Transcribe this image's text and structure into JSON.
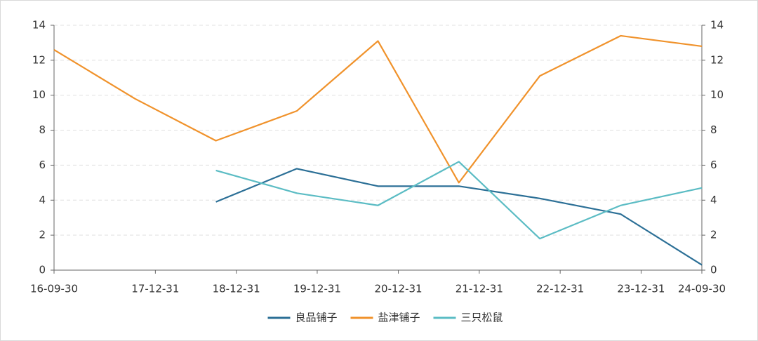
{
  "chart_data": {
    "type": "line",
    "x": [
      "16-09-30",
      "17-09-30",
      "18-09-30",
      "19-09-30",
      "20-09-30",
      "21-09-30",
      "22-09-30",
      "23-09-30",
      "24-09-30"
    ],
    "xlim": [
      "16-09-30",
      "24-09-30"
    ],
    "xticks": [
      "16-09-30",
      "17-12-31",
      "18-12-31",
      "19-12-31",
      "20-12-31",
      "21-12-31",
      "22-12-31",
      "23-12-31",
      "24-09-30"
    ],
    "ylim": [
      0,
      14
    ],
    "yticks": [
      0,
      2,
      4,
      6,
      8,
      10,
      12,
      14
    ],
    "y2lim": [
      0,
      14
    ],
    "y2ticks": [
      0,
      2,
      4,
      6,
      8,
      10,
      12,
      14
    ],
    "grid": true,
    "legend": "bottom",
    "series": [
      {
        "name": "良品铺子",
        "color": "#2b6f96",
        "values": [
          null,
          null,
          3.9,
          5.8,
          4.8,
          4.8,
          4.1,
          3.2,
          0.3
        ]
      },
      {
        "name": "盐津铺子",
        "color": "#f0922b",
        "values": [
          12.6,
          9.8,
          7.4,
          9.1,
          13.1,
          5.0,
          11.1,
          13.4,
          12.8
        ]
      },
      {
        "name": "三只松鼠",
        "color": "#5bbcc4",
        "values": [
          null,
          null,
          5.7,
          4.4,
          3.7,
          6.2,
          1.8,
          3.7,
          4.7
        ]
      }
    ]
  }
}
